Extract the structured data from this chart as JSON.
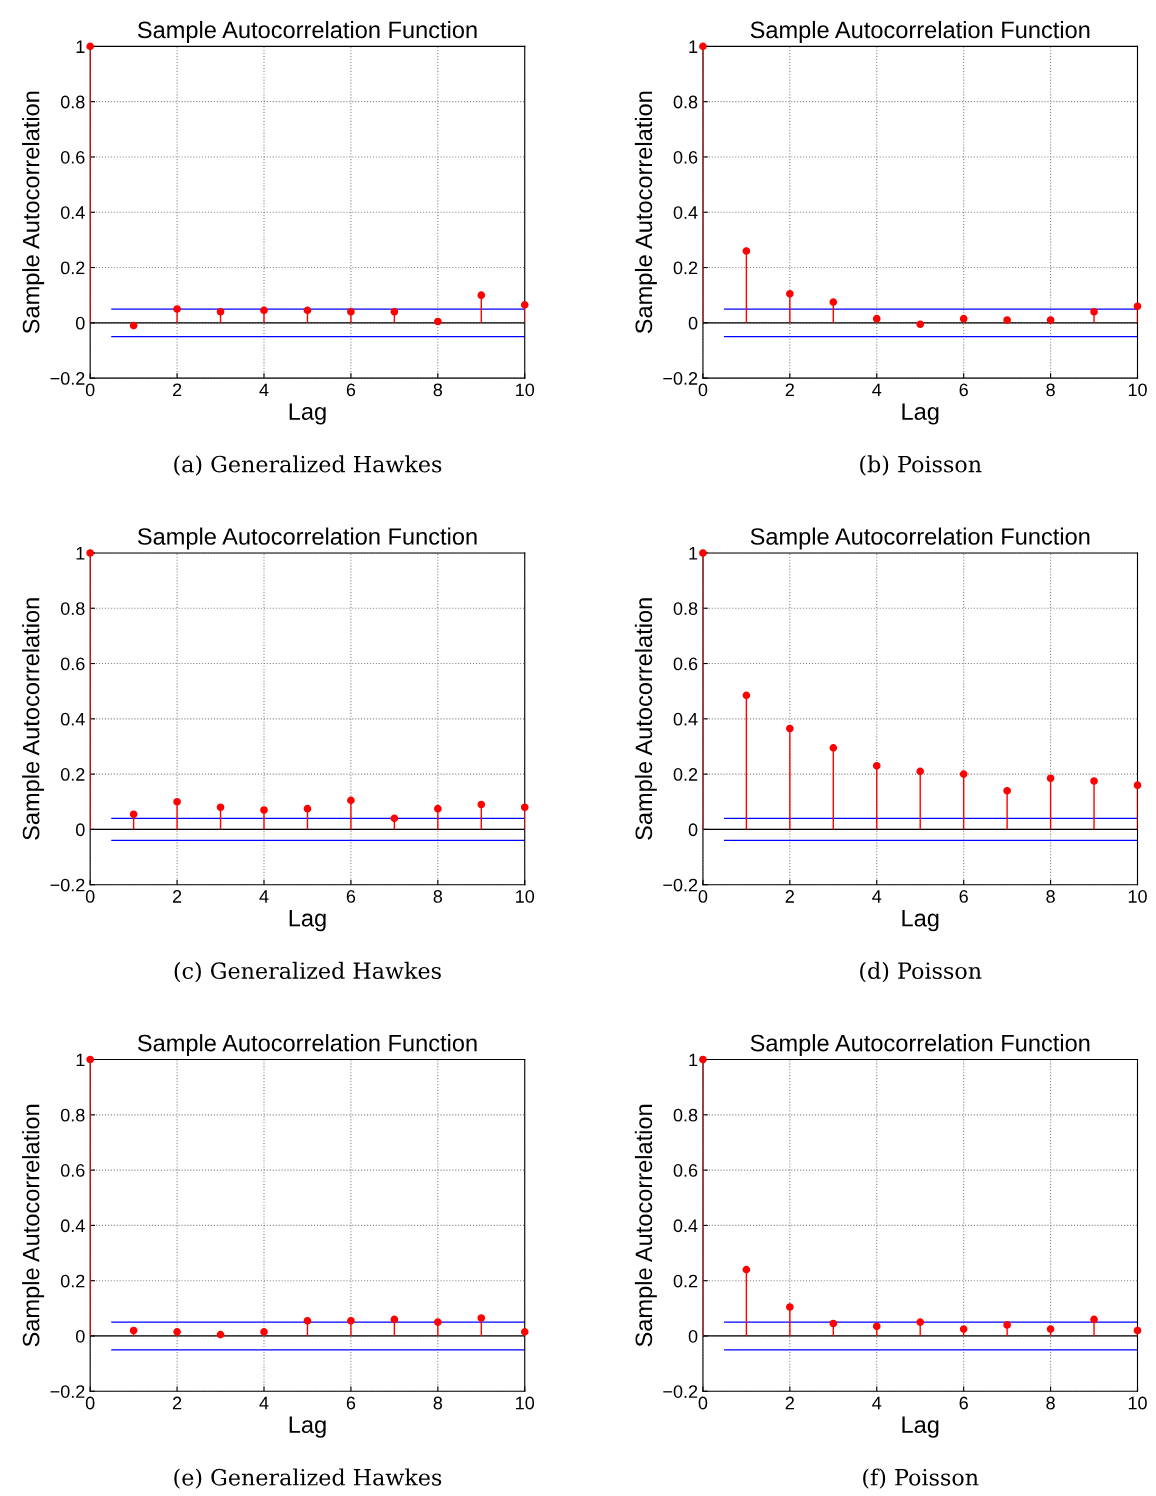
{
  "chart_data": [
    {
      "type": "lollipop",
      "title": "Sample Autocorrelation Function",
      "xlabel": "Lag",
      "ylabel": "Sample Autocorrelation",
      "x": [
        0,
        1,
        2,
        3,
        4,
        5,
        6,
        7,
        8,
        9,
        10
      ],
      "values": [
        1,
        -0.01,
        0.05,
        0.04,
        0.045,
        0.045,
        0.04,
        0.04,
        0.005,
        0.1,
        0.065
      ],
      "color": "#ff0000",
      "marker": "circle",
      "xlim": [
        0,
        10
      ],
      "ylim": [
        -0.2,
        1
      ],
      "xticks": [
        0,
        2,
        4,
        6,
        8,
        10
      ],
      "yticks": [
        -0.2,
        0,
        0.2,
        0.4,
        0.6,
        0.8,
        1
      ],
      "grid": true,
      "ref_lines": [
        {
          "axis": "y",
          "value": 0,
          "color": "#000000"
        },
        {
          "axis": "y",
          "value": 0.05,
          "color": "#0000ff"
        },
        {
          "axis": "y",
          "value": -0.05,
          "color": "#0000ff"
        }
      ],
      "annotations": [
        "(a) Generalized Hawkes"
      ]
    },
    {
      "type": "lollipop",
      "title": "Sample Autocorrelation Function",
      "xlabel": "Lag",
      "ylabel": "Sample Autocorrelation",
      "x": [
        0,
        1,
        2,
        3,
        4,
        5,
        6,
        7,
        8,
        9,
        10
      ],
      "values": [
        1,
        0.26,
        0.105,
        0.075,
        0.015,
        -0.005,
        0.015,
        0.01,
        0.01,
        0.04,
        0.06
      ],
      "color": "#ff0000",
      "marker": "circle",
      "xlim": [
        0,
        10
      ],
      "ylim": [
        -0.2,
        1
      ],
      "xticks": [
        0,
        2,
        4,
        6,
        8,
        10
      ],
      "yticks": [
        -0.2,
        0,
        0.2,
        0.4,
        0.6,
        0.8,
        1
      ],
      "grid": true,
      "ref_lines": [
        {
          "axis": "y",
          "value": 0,
          "color": "#000000"
        },
        {
          "axis": "y",
          "value": 0.05,
          "color": "#0000ff"
        },
        {
          "axis": "y",
          "value": -0.05,
          "color": "#0000ff"
        }
      ],
      "annotations": [
        "(b) Poisson"
      ]
    },
    {
      "type": "lollipop",
      "title": "Sample Autocorrelation Function",
      "xlabel": "Lag",
      "ylabel": "Sample Autocorrelation",
      "x": [
        0,
        1,
        2,
        3,
        4,
        5,
        6,
        7,
        8,
        9,
        10
      ],
      "values": [
        1,
        0.055,
        0.1,
        0.08,
        0.07,
        0.075,
        0.105,
        0.04,
        0.075,
        0.09,
        0.08
      ],
      "color": "#ff0000",
      "marker": "circle",
      "xlim": [
        0,
        10
      ],
      "ylim": [
        -0.2,
        1
      ],
      "xticks": [
        0,
        2,
        4,
        6,
        8,
        10
      ],
      "yticks": [
        -0.2,
        0,
        0.2,
        0.4,
        0.6,
        0.8,
        1
      ],
      "grid": true,
      "ref_lines": [
        {
          "axis": "y",
          "value": 0,
          "color": "#000000"
        },
        {
          "axis": "y",
          "value": 0.04,
          "color": "#0000ff"
        },
        {
          "axis": "y",
          "value": -0.04,
          "color": "#0000ff"
        }
      ],
      "annotations": [
        "(c) Generalized Hawkes"
      ]
    },
    {
      "type": "lollipop",
      "title": "Sample Autocorrelation Function",
      "xlabel": "Lag",
      "ylabel": "Sample Autocorrelation",
      "x": [
        0,
        1,
        2,
        3,
        4,
        5,
        6,
        7,
        8,
        9,
        10
      ],
      "values": [
        1,
        0.485,
        0.365,
        0.295,
        0.23,
        0.21,
        0.2,
        0.14,
        0.185,
        0.175,
        0.16
      ],
      "color": "#ff0000",
      "marker": "circle",
      "xlim": [
        0,
        10
      ],
      "ylim": [
        -0.2,
        1
      ],
      "xticks": [
        0,
        2,
        4,
        6,
        8,
        10
      ],
      "yticks": [
        -0.2,
        0,
        0.2,
        0.4,
        0.6,
        0.8,
        1
      ],
      "grid": true,
      "ref_lines": [
        {
          "axis": "y",
          "value": 0,
          "color": "#000000"
        },
        {
          "axis": "y",
          "value": 0.04,
          "color": "#0000ff"
        },
        {
          "axis": "y",
          "value": -0.04,
          "color": "#0000ff"
        }
      ],
      "annotations": [
        "(d) Poisson"
      ]
    },
    {
      "type": "lollipop",
      "title": "Sample Autocorrelation Function",
      "xlabel": "Lag",
      "ylabel": "Sample Autocorrelation",
      "x": [
        0,
        1,
        2,
        3,
        4,
        5,
        6,
        7,
        8,
        9,
        10
      ],
      "values": [
        1,
        0.02,
        0.015,
        0.005,
        0.015,
        0.055,
        0.055,
        0.06,
        0.05,
        0.065,
        0.015
      ],
      "color": "#ff0000",
      "marker": "circle",
      "xlim": [
        0,
        10
      ],
      "ylim": [
        -0.2,
        1
      ],
      "xticks": [
        0,
        2,
        4,
        6,
        8,
        10
      ],
      "yticks": [
        -0.2,
        0,
        0.2,
        0.4,
        0.6,
        0.8,
        1
      ],
      "grid": true,
      "ref_lines": [
        {
          "axis": "y",
          "value": 0,
          "color": "#000000"
        },
        {
          "axis": "y",
          "value": 0.05,
          "color": "#0000ff"
        },
        {
          "axis": "y",
          "value": -0.05,
          "color": "#0000ff"
        }
      ],
      "annotations": [
        "(e) Generalized Hawkes"
      ]
    },
    {
      "type": "lollipop",
      "title": "Sample Autocorrelation Function",
      "xlabel": "Lag",
      "ylabel": "Sample Autocorrelation",
      "x": [
        0,
        1,
        2,
        3,
        4,
        5,
        6,
        7,
        8,
        9,
        10
      ],
      "values": [
        1,
        0.24,
        0.105,
        0.045,
        0.035,
        0.05,
        0.025,
        0.04,
        0.025,
        0.06,
        0.02
      ],
      "color": "#ff0000",
      "marker": "circle",
      "xlim": [
        0,
        10
      ],
      "ylim": [
        -0.2,
        1
      ],
      "xticks": [
        0,
        2,
        4,
        6,
        8,
        10
      ],
      "yticks": [
        -0.2,
        0,
        0.2,
        0.4,
        0.6,
        0.8,
        1
      ],
      "grid": true,
      "ref_lines": [
        {
          "axis": "y",
          "value": 0,
          "color": "#000000"
        },
        {
          "axis": "y",
          "value": 0.05,
          "color": "#0000ff"
        },
        {
          "axis": "y",
          "value": -0.05,
          "color": "#0000ff"
        }
      ],
      "annotations": [
        "(f) Poisson"
      ]
    }
  ]
}
